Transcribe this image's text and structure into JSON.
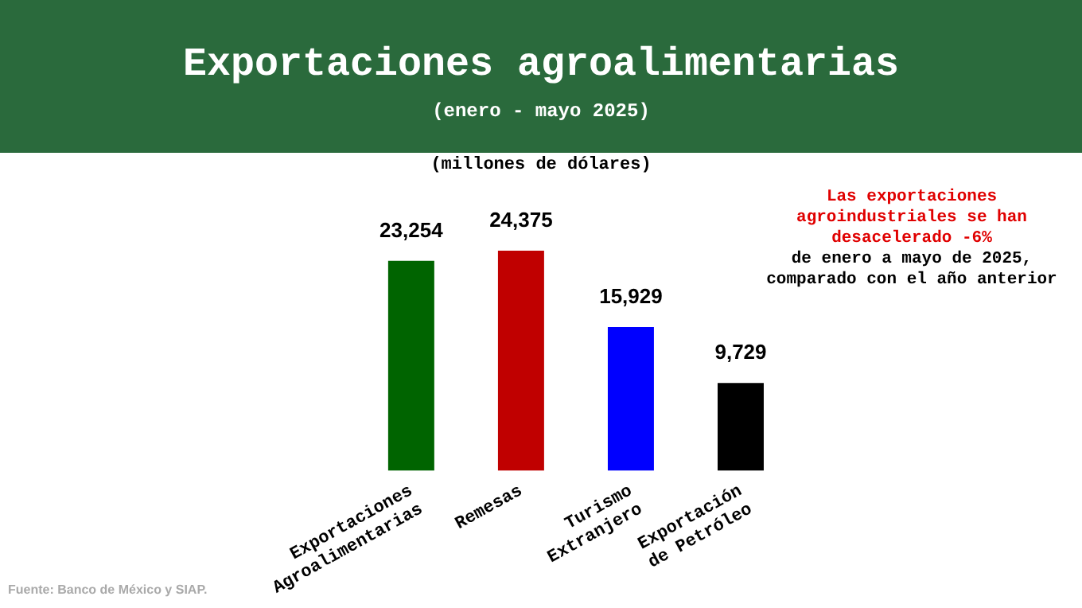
{
  "chart_data": {
    "type": "bar",
    "title": "Exportaciones agroalimentarias",
    "subtitle": "(enero - mayo 2025)",
    "ylabel": "(millones de dólares)",
    "categories": [
      "Exportaciones Agroalimentarias",
      "Remesas",
      "Turismo Extranjero",
      "Exportación de Petróleo"
    ],
    "values": [
      23254,
      24375,
      15929,
      9729
    ],
    "colors": [
      "#006400",
      "#c00000",
      "#0000ff",
      "#000000"
    ],
    "value_labels": [
      "23,254",
      "24,375",
      "15,929",
      "9,729"
    ],
    "annotations": [
      "Las exportaciones agroindustriales se han desacelerado -6%",
      "de enero a mayo de 2025, comparado con el año anterior",
      "Fuente: Banco de México y SIAP."
    ],
    "grid": false,
    "legend": false
  }
}
